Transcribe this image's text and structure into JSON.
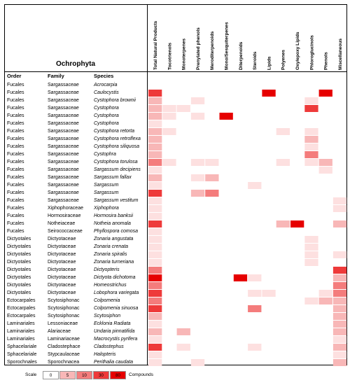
{
  "chart_data": {
    "type": "heatmap",
    "title": "Ochrophyta",
    "row_headers": [
      "Order",
      "Family",
      "Species"
    ],
    "columns": [
      "Total Natural Products",
      "Tocotrienols",
      "Monoterpenes",
      "Prenylated phenols",
      "Meroditerpenoids",
      "Mono/Sesquiterpenes",
      "Diterpenoids",
      "Steroids",
      "Lipids",
      "Polyenes",
      "Oxy/epoxy Lipids",
      "Phloroglucinols",
      "Phenols",
      "Miscellaneous"
    ],
    "rows": [
      {
        "order": "Fucales",
        "family": "Sargassaceae",
        "species": "Acrocarpia",
        "values": [
          0,
          0,
          0,
          0,
          0,
          0,
          0,
          0,
          0,
          0,
          0,
          0,
          0,
          0
        ]
      },
      {
        "order": "Fucales",
        "family": "Sargassaceae",
        "species": "Caulocystis",
        "values": [
          4,
          0,
          0,
          0,
          0,
          0,
          0,
          0,
          5,
          0,
          0,
          0,
          5,
          0
        ]
      },
      {
        "order": "Fucales",
        "family": "Sargassaceae",
        "species": "Cystophora brownii",
        "values": [
          2,
          0,
          0,
          1,
          0,
          0,
          0,
          0,
          0,
          0,
          0,
          1,
          0,
          0
        ]
      },
      {
        "order": "Fucales",
        "family": "Sargassaceae",
        "species": "Cystophora",
        "values": [
          2,
          1,
          1,
          0,
          0,
          0,
          0,
          0,
          0,
          0,
          0,
          4,
          0,
          0
        ]
      },
      {
        "order": "Fucales",
        "family": "Sargassaceae",
        "species": "Cystophora",
        "values": [
          2,
          1,
          0,
          1,
          0,
          5,
          0,
          0,
          0,
          0,
          0,
          0,
          0,
          0
        ]
      },
      {
        "order": "Fucales",
        "family": "Sargassaceae",
        "species": "Cystophora",
        "values": [
          1,
          0,
          0,
          0,
          0,
          0,
          0,
          0,
          0,
          0,
          0,
          0,
          0,
          0
        ]
      },
      {
        "order": "Fucales",
        "family": "Sargassaceae",
        "species": "Cystophora retorta",
        "values": [
          2,
          1,
          0,
          0,
          0,
          0,
          0,
          0,
          0,
          1,
          0,
          1,
          0,
          0
        ]
      },
      {
        "order": "Fucales",
        "family": "Sargassaceae",
        "species": "Cystophora retroflexa",
        "values": [
          2,
          0,
          0,
          0,
          0,
          0,
          0,
          0,
          0,
          0,
          0,
          2,
          0,
          0
        ]
      },
      {
        "order": "Fucales",
        "family": "Sargassaceae",
        "species": "Cystophora siliquosa",
        "values": [
          2,
          0,
          0,
          0,
          0,
          0,
          0,
          0,
          0,
          0,
          0,
          1,
          0,
          0
        ]
      },
      {
        "order": "Fucales",
        "family": "Sargassaceae",
        "species": "Cystophra",
        "values": [
          2,
          0,
          0,
          0,
          0,
          0,
          0,
          0,
          0,
          0,
          0,
          3,
          0,
          0
        ]
      },
      {
        "order": "Fucales",
        "family": "Sargassaceae",
        "species": "Cystophora torulosa",
        "values": [
          3,
          1,
          0,
          1,
          1,
          0,
          0,
          0,
          0,
          1,
          0,
          1,
          2,
          0
        ]
      },
      {
        "order": "Fucales",
        "family": "Sargassaceae",
        "species": "Sargassum decipiens",
        "values": [
          1,
          0,
          0,
          0,
          0,
          0,
          0,
          0,
          0,
          0,
          0,
          0,
          1,
          0
        ]
      },
      {
        "order": "Fucales",
        "family": "Sargassaceae",
        "species": "Sargassum fallax",
        "values": [
          2,
          0,
          0,
          1,
          2,
          0,
          0,
          0,
          0,
          0,
          0,
          0,
          0,
          0
        ]
      },
      {
        "order": "Fucales",
        "family": "Sargassaceae",
        "species": "Sargassum",
        "values": [
          1,
          0,
          0,
          0,
          0,
          0,
          0,
          1,
          0,
          0,
          0,
          0,
          0,
          0
        ]
      },
      {
        "order": "Fucales",
        "family": "Sargassaceae",
        "species": "Sargassum",
        "values": [
          4,
          0,
          0,
          2,
          3,
          0,
          0,
          0,
          0,
          0,
          0,
          0,
          0,
          0
        ]
      },
      {
        "order": "Fucales",
        "family": "Sargassaceae",
        "species": "Sargassum vestitum",
        "values": [
          1,
          0,
          0,
          0,
          0,
          0,
          0,
          0,
          0,
          0,
          0,
          0,
          0,
          1
        ]
      },
      {
        "order": "Fucales",
        "family": "Xiphophoraceae",
        "species": "Xiphophora",
        "values": [
          1,
          0,
          0,
          0,
          0,
          0,
          0,
          0,
          0,
          0,
          0,
          0,
          0,
          1
        ]
      },
      {
        "order": "Fucales",
        "family": "Hormosiraceae",
        "species": "Hormosira banksii",
        "values": [
          1,
          0,
          0,
          0,
          0,
          0,
          0,
          0,
          0,
          0,
          0,
          0,
          0,
          0
        ]
      },
      {
        "order": "Fucales",
        "family": "Notheiaceae",
        "species": "Notheia anomala",
        "values": [
          4,
          0,
          0,
          0,
          0,
          0,
          0,
          0,
          0,
          2,
          5,
          0,
          0,
          2
        ]
      },
      {
        "order": "Fucales",
        "family": "Seirococcaceae",
        "species": "Phyllospora comosa",
        "values": [
          1,
          0,
          0,
          0,
          0,
          0,
          0,
          0,
          0,
          0,
          0,
          0,
          0,
          0
        ]
      },
      {
        "order": "Dictyotales",
        "family": "Dictyotaceae",
        "species": "Zonaria angustata",
        "values": [
          1,
          0,
          0,
          0,
          0,
          0,
          0,
          0,
          0,
          0,
          0,
          1,
          0,
          0
        ]
      },
      {
        "order": "Dictyotales",
        "family": "Dictyotaceae",
        "species": "Zonaria crenata",
        "values": [
          1,
          0,
          0,
          0,
          0,
          0,
          0,
          0,
          0,
          0,
          0,
          1,
          0,
          0
        ]
      },
      {
        "order": "Dictyotales",
        "family": "Dictyotaceae",
        "species": "Zonaria spiralis",
        "values": [
          1,
          0,
          0,
          0,
          0,
          0,
          0,
          0,
          0,
          0,
          0,
          1,
          0,
          1
        ]
      },
      {
        "order": "Dictyotales",
        "family": "Dictyotaceae",
        "species": "Zonaria turneriana",
        "values": [
          1,
          0,
          0,
          0,
          0,
          0,
          0,
          0,
          0,
          0,
          0,
          1,
          0,
          0
        ]
      },
      {
        "order": "Dictyotales",
        "family": "Dictyotaceae",
        "species": "Dictyopteris",
        "values": [
          3,
          0,
          0,
          0,
          0,
          0,
          0,
          0,
          0,
          0,
          0,
          0,
          0,
          4
        ]
      },
      {
        "order": "Dictyotales",
        "family": "Dictyotaceae",
        "species": "Dictyota dichotoma",
        "values": [
          5,
          0,
          0,
          0,
          0,
          0,
          5,
          1,
          0,
          0,
          0,
          0,
          0,
          2
        ]
      },
      {
        "order": "Dictyotales",
        "family": "Dictyotaceae",
        "species": "Homeostrichus",
        "values": [
          3,
          0,
          0,
          0,
          0,
          0,
          0,
          0,
          0,
          0,
          0,
          0,
          0,
          3
        ]
      },
      {
        "order": "Dictyotales",
        "family": "Dictyotaceae",
        "species": "Lobophora variegata",
        "values": [
          4,
          0,
          0,
          0,
          0,
          0,
          0,
          1,
          1,
          0,
          0,
          0,
          1,
          3
        ]
      },
      {
        "order": "Ectocarpales",
        "family": "Scytosiphonac",
        "species": "Colpomenia",
        "values": [
          3,
          0,
          0,
          0,
          0,
          0,
          0,
          0,
          0,
          0,
          0,
          1,
          2,
          2
        ]
      },
      {
        "order": "Ectocarpales",
        "family": "Scytosiphonac",
        "species": "Colpomenia sinuosa",
        "values": [
          4,
          0,
          0,
          0,
          0,
          0,
          0,
          3,
          0,
          0,
          0,
          0,
          0,
          2
        ]
      },
      {
        "order": "Ectocarpales",
        "family": "Scytosiphonac",
        "species": "Scytosiphon",
        "values": [
          2,
          0,
          0,
          0,
          0,
          0,
          0,
          0,
          0,
          0,
          0,
          0,
          0,
          2
        ]
      },
      {
        "order": "Laminariales",
        "family": "Lessoniaceae",
        "species": "Ecklonia Radiata",
        "values": [
          1,
          0,
          0,
          0,
          0,
          0,
          0,
          0,
          0,
          0,
          0,
          0,
          0,
          2
        ]
      },
      {
        "order": "Laminariales",
        "family": "Alariaceae",
        "species": "Undaria pinnatifida",
        "values": [
          2,
          0,
          2,
          0,
          0,
          0,
          0,
          0,
          0,
          0,
          0,
          0,
          0,
          2
        ]
      },
      {
        "order": "Laminariales",
        "family": "Laminariaceae",
        "species": "Macrocystis pyrifera",
        "values": [
          1,
          0,
          0,
          0,
          0,
          0,
          0,
          0,
          0,
          0,
          0,
          0,
          0,
          1
        ]
      },
      {
        "order": "Sphacelariale",
        "family": "Cladostephace",
        "species": "Cladostephus",
        "values": [
          4,
          0,
          1,
          0,
          0,
          0,
          0,
          1,
          0,
          0,
          0,
          0,
          0,
          2
        ]
      },
      {
        "order": "Sphacelariale",
        "family": "Stypcaulaceae",
        "species": "Halopteris",
        "values": [
          1,
          0,
          0,
          0,
          0,
          0,
          0,
          0,
          0,
          0,
          0,
          0,
          0,
          1
        ]
      },
      {
        "order": "Sporochnales",
        "family": "Sporochnacea",
        "species": "Perithalia caudata",
        "values": [
          1,
          0,
          0,
          1,
          0,
          0,
          0,
          0,
          0,
          0,
          0,
          0,
          0,
          2
        ]
      }
    ],
    "scale": {
      "label": "Scale",
      "unit": "Compounds",
      "bins": [
        "0",
        "5",
        "10",
        "30",
        "80"
      ],
      "colors": [
        "#ffffff",
        "#fde0e0",
        "#f8b7b7",
        "#f47c7c",
        "#ee3a3a",
        "#e60000"
      ]
    }
  }
}
